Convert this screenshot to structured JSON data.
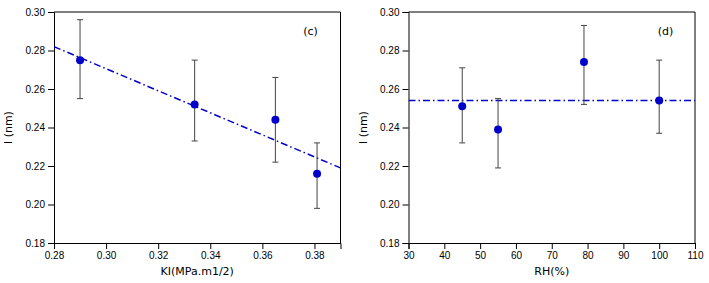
{
  "chart_data": [
    {
      "type": "scatter",
      "xlabel": "KI(MPa.m1/2)",
      "ylabel": "l (nm)",
      "annotation": "(c)",
      "xlim": [
        0.28,
        0.39
      ],
      "ylim": [
        0.18,
        0.3
      ],
      "xticks": [
        0.28,
        {
          "value": 0.3,
          "label": "0.30"
        },
        0.32,
        0.34,
        0.36,
        0.38
      ],
      "yticks": [
        0.18,
        {
          "value": 0.2,
          "label": "0.20"
        },
        0.22,
        0.24,
        0.26,
        0.28,
        {
          "value": 0.3,
          "label": "0.30"
        }
      ],
      "series": [
        {
          "type": "line",
          "line_style": "dashdot",
          "color": "#0000cd",
          "x": [
            0.28,
            0.39
          ],
          "values": [
            0.282,
            0.219
          ]
        },
        {
          "type": "scatter",
          "marker": "circle",
          "color": "#0000cd",
          "x": [
            0.29,
            0.334,
            0.365,
            0.381
          ],
          "values": [
            0.275,
            0.252,
            0.244,
            0.216
          ],
          "error_lower": [
            0.02,
            0.019,
            0.022,
            0.018
          ],
          "error_upper": [
            0.021,
            0.023,
            0.022,
            0.016
          ]
        }
      ]
    },
    {
      "type": "scatter",
      "xlabel": "RH(%)",
      "ylabel": "l (nm)",
      "annotation": "(d)",
      "xlim": [
        30,
        110
      ],
      "ylim": [
        0.18,
        0.3
      ],
      "xticks": [
        30,
        40,
        50,
        60,
        70,
        80,
        90,
        100,
        110
      ],
      "yticks": [
        0.18,
        {
          "value": 0.2,
          "label": "0.20"
        },
        0.22,
        0.24,
        0.26,
        0.28,
        {
          "value": 0.3,
          "label": "0.30"
        }
      ],
      "series": [
        {
          "type": "line",
          "line_style": "dashdot",
          "color": "#0000cd",
          "x": [
            30,
            110
          ],
          "values": [
            0.254,
            0.254
          ]
        },
        {
          "type": "scatter",
          "marker": "circle",
          "color": "#0000cd",
          "x": [
            45,
            55,
            79,
            100
          ],
          "values": [
            0.251,
            0.239,
            0.274,
            0.254
          ],
          "error_lower": [
            0.019,
            0.02,
            0.022,
            0.017
          ],
          "error_upper": [
            0.02,
            0.016,
            0.019,
            0.021
          ]
        }
      ]
    }
  ]
}
